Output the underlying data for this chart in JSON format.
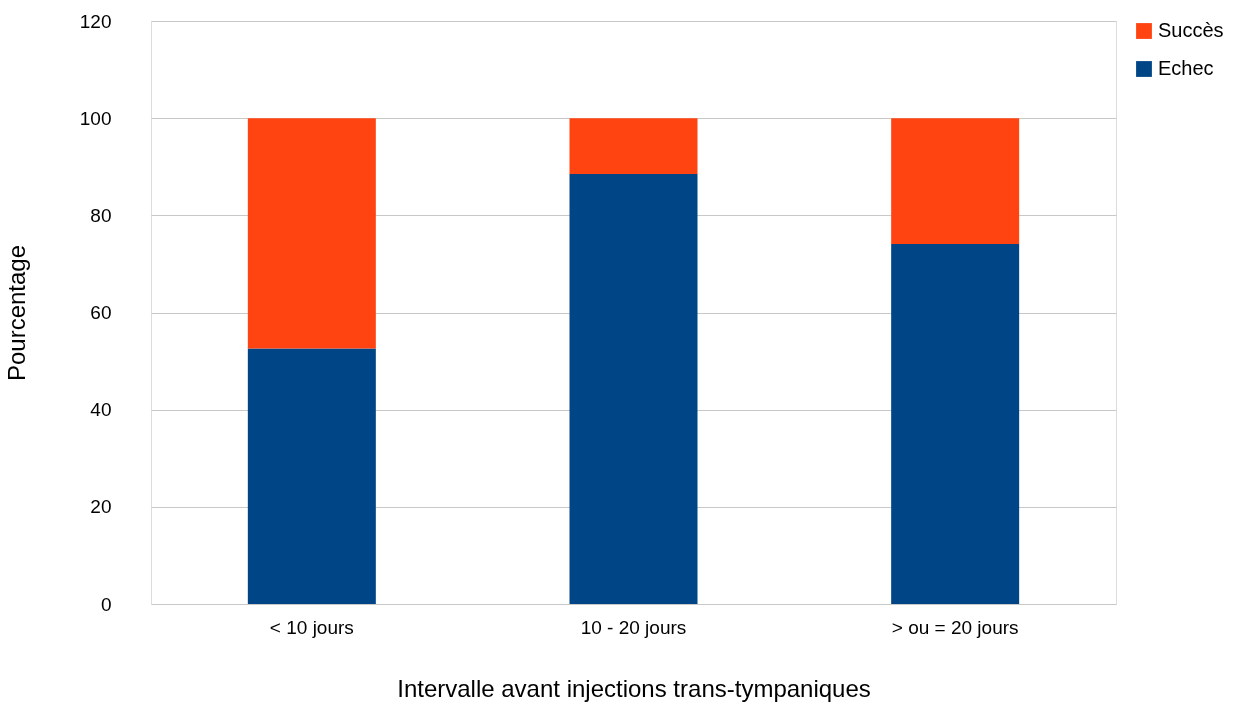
{
  "chart_data": {
    "type": "bar",
    "stacked": true,
    "xlabel": "Intervalle avant injections trans-tympaniques",
    "ylabel": "Pourcentage",
    "categories": [
      "< 10 jours",
      "10 - 20 jours",
      "> ou = 20 jours"
    ],
    "series": [
      {
        "name": "Echec",
        "color": "#004586",
        "values": [
          52.6,
          88.5,
          74.1
        ]
      },
      {
        "name": "Succès",
        "color": "#ff4412",
        "values": [
          47.4,
          11.5,
          25.9
        ]
      }
    ],
    "ylim": [
      0,
      120
    ],
    "yticks": [
      0,
      20,
      40,
      60,
      80,
      100,
      120
    ],
    "grid": "y",
    "legend": "right"
  }
}
